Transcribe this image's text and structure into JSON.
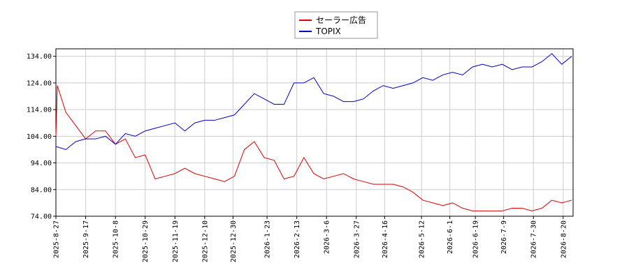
{
  "chart_data": {
    "type": "line",
    "x": [
      "2025-8-27",
      "2025-8-28",
      "2025-9-3",
      "2025-9-10",
      "2025-9-17",
      "2025-9-24",
      "2025-10-1",
      "2025-10-8",
      "2025-10-15",
      "2025-10-22",
      "2025-10-29",
      "2025-11-5",
      "2025-11-12",
      "2025-11-19",
      "2025-11-26",
      "2025-12-3",
      "2025-12-10",
      "2025-12-17",
      "2025-12-24",
      "2025-12-31",
      "2026-1-7",
      "2026-1-14",
      "2026-1-21",
      "2026-1-28",
      "2026-2-4",
      "2026-2-11",
      "2026-2-18",
      "2026-2-25",
      "2026-3-4",
      "2026-3-11",
      "2026-3-18",
      "2026-3-25",
      "2026-4-1",
      "2026-4-8",
      "2026-4-15",
      "2026-4-22",
      "2026-4-29",
      "2026-5-6",
      "2026-5-13",
      "2026-5-20",
      "2026-5-27",
      "2026-6-3",
      "2026-6-10",
      "2026-6-17",
      "2026-6-24",
      "2026-7-1",
      "2026-7-8",
      "2026-7-15",
      "2026-7-22",
      "2026-7-29",
      "2026-8-5",
      "2026-8-12",
      "2026-8-19",
      "2026-8-26"
    ],
    "series": [
      {
        "name": "セーラー広告",
        "color": "#dd0000",
        "values": [
          104,
          123,
          113,
          108,
          103,
          106,
          106,
          101,
          103,
          96,
          97,
          88,
          89,
          90,
          92,
          90,
          89,
          88,
          87,
          89,
          99,
          102,
          96,
          95,
          88,
          89,
          96,
          90,
          88,
          89,
          90,
          88,
          87,
          86,
          86,
          86,
          85,
          83,
          80,
          79,
          78,
          79,
          77,
          76,
          76,
          76,
          76,
          77,
          77,
          76,
          77,
          80,
          79,
          80
        ]
      },
      {
        "name": "TOPIX",
        "color": "#0000cc",
        "values": [
          100,
          100,
          99,
          102,
          103,
          103,
          104,
          101,
          105,
          104,
          106,
          107,
          108,
          109,
          106,
          109,
          110,
          110,
          111,
          112,
          116,
          120,
          118,
          116,
          116,
          124,
          124,
          126,
          120,
          119,
          117,
          117,
          118,
          121,
          123,
          122,
          123,
          124,
          126,
          125,
          127,
          128,
          127,
          130,
          131,
          130,
          131,
          129,
          130,
          130,
          132,
          135,
          131,
          134
        ]
      }
    ],
    "xlim": [
      "2025-8-27",
      "2026-8-27"
    ],
    "xticks": [
      "2025-8-27",
      "2025-9-17",
      "2025-10-8",
      "2025-10-29",
      "2025-11-19",
      "2025-12-10",
      "2025-12-30",
      "2026-1-23",
      "2026-2-13",
      "2026-3-6",
      "2026-3-27",
      "2026-4-16",
      "2026-5-12",
      "2026-6-1",
      "2026-6-19",
      "2026-7-9",
      "2026-7-30",
      "2026-8-20"
    ],
    "ylim": [
      74,
      136.8
    ],
    "yticks": [
      {
        "value": 74,
        "label": "74.00"
      },
      {
        "value": 84,
        "label": "84.00"
      },
      {
        "value": 94,
        "label": "94.00"
      },
      {
        "value": 104,
        "label": "104.00"
      },
      {
        "value": 114,
        "label": "114.00"
      },
      {
        "value": 124,
        "label": "124.00"
      },
      {
        "value": 134,
        "label": "134.00"
      }
    ],
    "grid": true,
    "legend": "top"
  }
}
